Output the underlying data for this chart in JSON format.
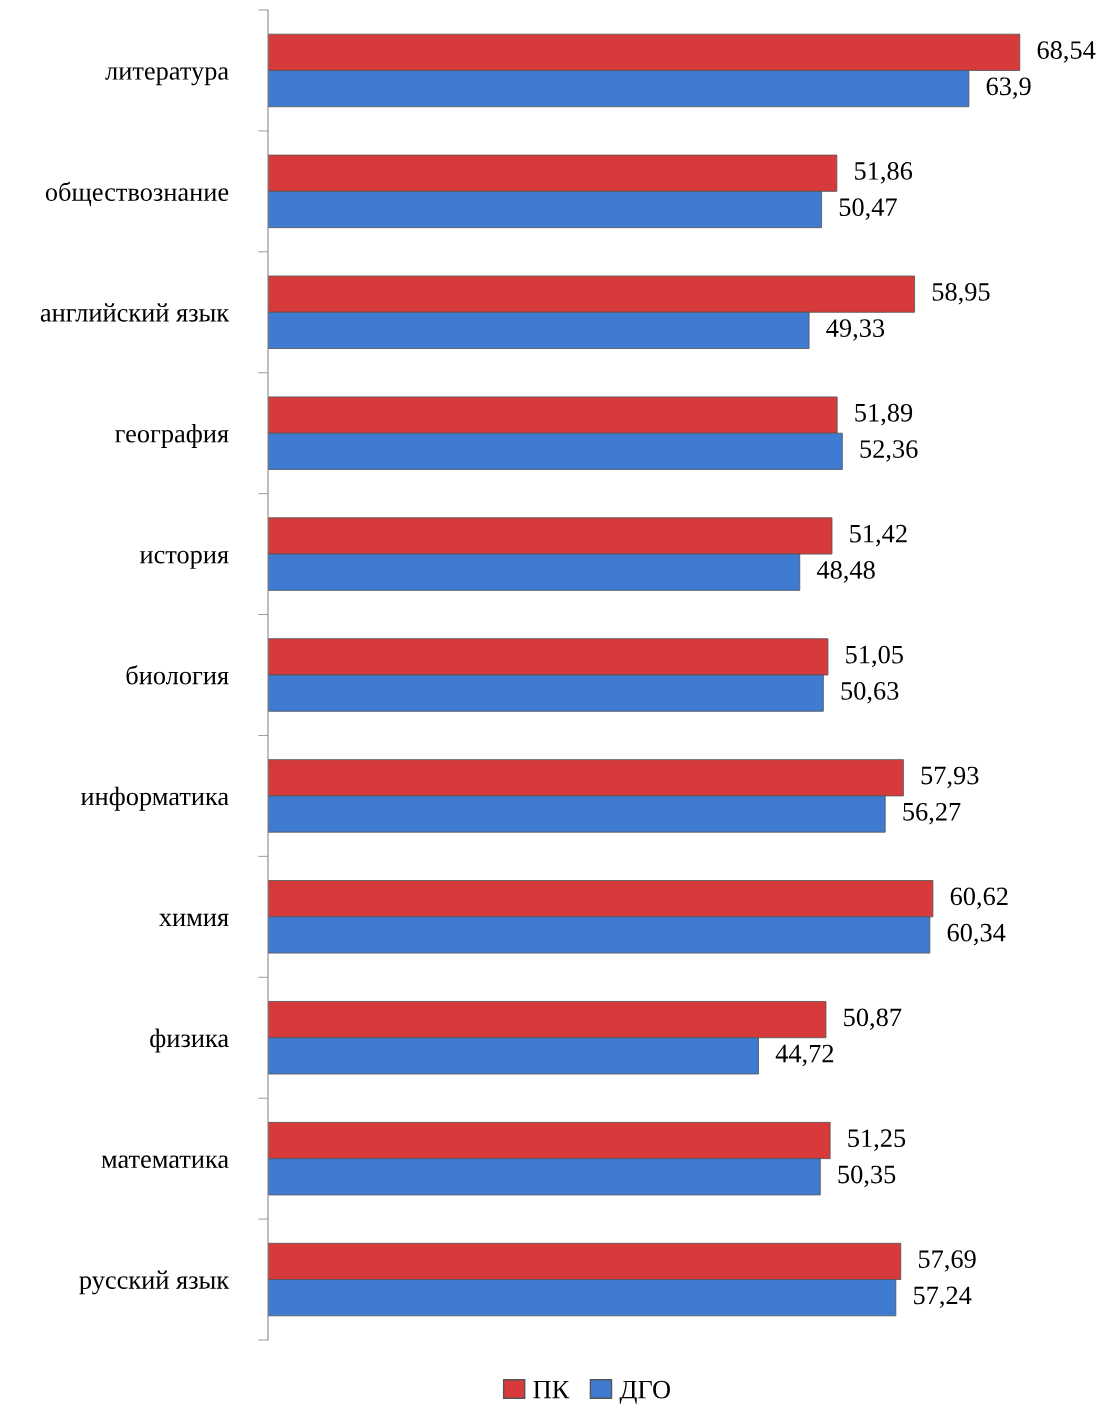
{
  "chart_data": {
    "type": "bar",
    "orientation": "horizontal",
    "categories": [
      "литература",
      "обществознание",
      "английский язык",
      "география",
      "история",
      "биология",
      "информатика",
      "химия",
      "физика",
      "математика",
      "русский язык"
    ],
    "series": [
      {
        "name": "ПК",
        "color": "#d63a3a",
        "values": [
          68.54,
          51.86,
          58.95,
          51.89,
          51.42,
          51.05,
          57.93,
          60.62,
          50.87,
          51.25,
          57.69
        ],
        "value_labels": [
          "68,54",
          "51,86",
          "58,95",
          "51,89",
          "51,42",
          "51,05",
          "57,93",
          "60,62",
          "50,87",
          "51,25",
          "57,69"
        ]
      },
      {
        "name": "ДГО",
        "color": "#3f7bd0",
        "values": [
          63.9,
          50.47,
          49.33,
          52.36,
          48.48,
          50.63,
          56.27,
          60.34,
          44.72,
          50.35,
          57.24
        ],
        "value_labels": [
          "63,9",
          "50,47",
          "49,33",
          "52,36",
          "48,48",
          "50,63",
          "56,27",
          "60,34",
          "44,72",
          "50,35",
          "57,24"
        ]
      }
    ],
    "tick_labels": "y",
    "grid": false,
    "legend": "bottom"
  }
}
